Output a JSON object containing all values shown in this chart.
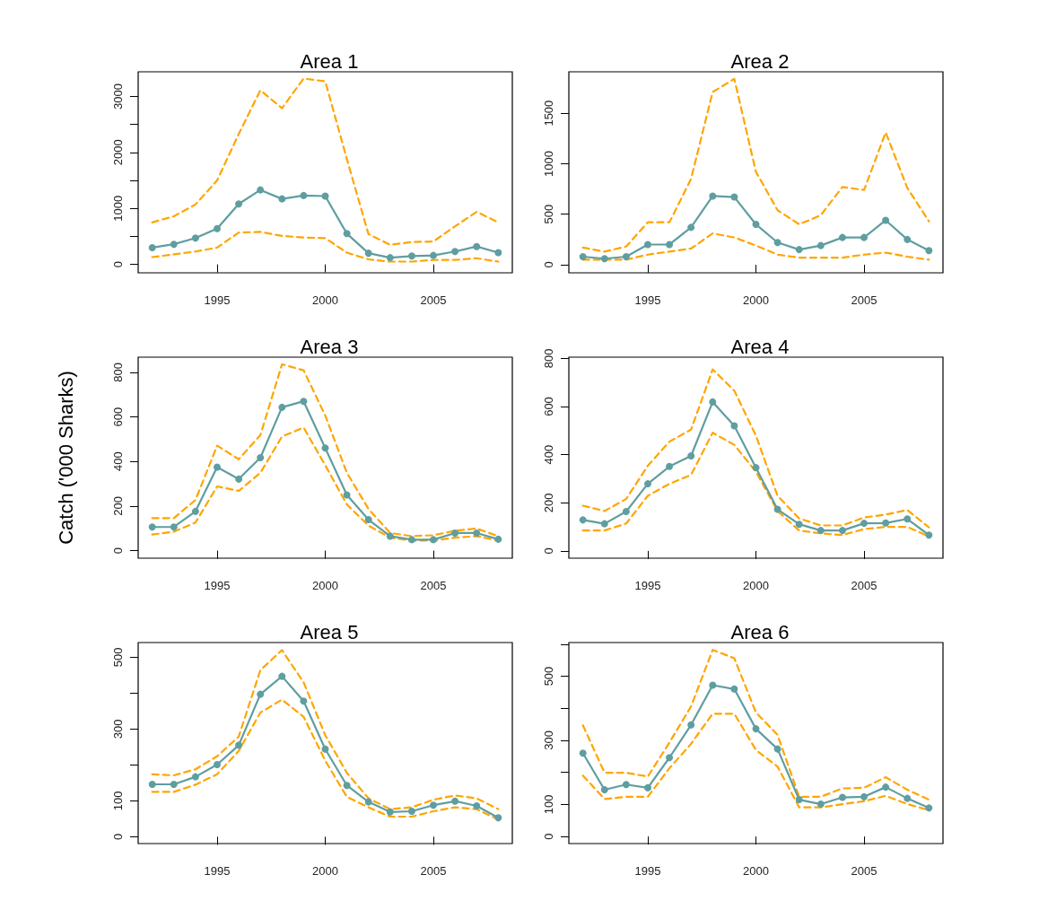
{
  "chart_data": [
    {
      "type": "line",
      "title": "Area 1",
      "x": [
        1992,
        1993,
        1994,
        1995,
        1996,
        1997,
        1998,
        1999,
        2000,
        2001,
        2002,
        2003,
        2004,
        2005,
        2006,
        2007,
        2008
      ],
      "xlim": [
        1991.35,
        2008.65
      ],
      "xticks": [
        1995,
        2000,
        2005
      ],
      "ylim": [
        -150,
        3440
      ],
      "yticks": [
        0,
        {
          "value": 500,
          "label": null
        },
        1000,
        {
          "value": 1500,
          "label": null
        },
        2000,
        {
          "value": 2500,
          "label": null
        },
        3000
      ],
      "grid": false,
      "series": [
        {
          "color": "#5f9ea0",
          "marker": "circle",
          "line_style": "solid",
          "values": [
            300,
            360,
            470,
            640,
            1080,
            1330,
            1170,
            1230,
            1220,
            550,
            200,
            120,
            150,
            160,
            230,
            320,
            210
          ]
        },
        {
          "color": "#ffa500",
          "marker": "none",
          "line_style": "dashed",
          "values": [
            750,
            860,
            1070,
            1500,
            2330,
            3110,
            2790,
            3320,
            3270,
            1880,
            540,
            350,
            400,
            410,
            680,
            940,
            750
          ]
        },
        {
          "color": "#ffa500",
          "marker": "none",
          "line_style": "dashed",
          "values": [
            130,
            180,
            230,
            300,
            570,
            580,
            510,
            480,
            470,
            210,
            90,
            50,
            50,
            80,
            80,
            110,
            50
          ]
        }
      ]
    },
    {
      "type": "line",
      "title": "Area 2",
      "x": [
        1992,
        1993,
        1994,
        1995,
        1996,
        1997,
        1998,
        1999,
        2000,
        2001,
        2002,
        2003,
        2004,
        2005,
        2006,
        2007,
        2008
      ],
      "xlim": [
        1991.35,
        2008.65
      ],
      "xticks": [
        1995,
        2000,
        2005
      ],
      "ylim": [
        -80,
        1910
      ],
      "yticks": [
        0,
        500,
        1000,
        1500
      ],
      "grid": false,
      "series": [
        {
          "color": "#5f9ea0",
          "marker": "circle",
          "line_style": "solid",
          "values": [
            80,
            60,
            80,
            200,
            200,
            370,
            680,
            670,
            400,
            220,
            150,
            190,
            270,
            270,
            440,
            250,
            140
          ]
        },
        {
          "color": "#ffa500",
          "marker": "none",
          "line_style": "dashed",
          "values": [
            170,
            130,
            180,
            420,
            420,
            850,
            1710,
            1840,
            920,
            540,
            400,
            490,
            770,
            740,
            1310,
            760,
            430
          ]
        },
        {
          "color": "#ffa500",
          "marker": "none",
          "line_style": "dashed",
          "values": [
            50,
            50,
            50,
            100,
            130,
            160,
            310,
            270,
            190,
            100,
            70,
            70,
            70,
            100,
            120,
            80,
            50
          ]
        }
      ]
    },
    {
      "type": "line",
      "title": "Area 3",
      "ylabel": "Catch ('000 Sharks)",
      "x": [
        1992,
        1993,
        1994,
        1995,
        1996,
        1997,
        1998,
        1999,
        2000,
        2001,
        2002,
        2003,
        2004,
        2005,
        2006,
        2007,
        2008
      ],
      "xlim": [
        1991.35,
        2008.65
      ],
      "xticks": [
        1995,
        2000,
        2005
      ],
      "ylim": [
        -34,
        868
      ],
      "yticks": [
        0,
        200,
        400,
        600,
        800
      ],
      "grid": false,
      "series": [
        {
          "color": "#5f9ea0",
          "marker": "circle",
          "line_style": "solid",
          "values": [
            106,
            106,
            176,
            375,
            321,
            417,
            643,
            670,
            460,
            250,
            139,
            65,
            49,
            49,
            79,
            79,
            51
          ]
        },
        {
          "color": "#ffa500",
          "marker": "none",
          "line_style": "dashed",
          "values": [
            146,
            146,
            227,
            471,
            410,
            518,
            836,
            809,
            606,
            349,
            187,
            79,
            65,
            69,
            89,
            99,
            65
          ]
        },
        {
          "color": "#ffa500",
          "marker": "none",
          "line_style": "dashed",
          "values": [
            72,
            85,
            126,
            288,
            268,
            349,
            512,
            552,
            383,
            207,
            112,
            58,
            45,
            45,
            58,
            65,
            45
          ]
        }
      ]
    },
    {
      "type": "line",
      "title": "Area 4",
      "x": [
        1992,
        1993,
        1994,
        1995,
        1996,
        1997,
        1998,
        1999,
        2000,
        2001,
        2002,
        2003,
        2004,
        2005,
        2006,
        2007,
        2008
      ],
      "xlim": [
        1991.35,
        2008.65
      ],
      "xticks": [
        1995,
        2000,
        2005
      ],
      "ylim": [
        -30,
        805
      ],
      "yticks": [
        0,
        200,
        400,
        600,
        800
      ],
      "grid": false,
      "series": [
        {
          "color": "#5f9ea0",
          "marker": "circle",
          "line_style": "solid",
          "values": [
            129,
            113,
            164,
            279,
            351,
            395,
            619,
            520,
            346,
            173,
            111,
            85,
            85,
            115,
            116,
            133,
            66
          ]
        },
        {
          "color": "#ffa500",
          "marker": "none",
          "line_style": "dashed",
          "values": [
            188,
            166,
            216,
            354,
            454,
            504,
            754,
            666,
            479,
            229,
            135,
            106,
            106,
            139,
            151,
            170,
            98
          ]
        },
        {
          "color": "#ffa500",
          "marker": "none",
          "line_style": "dashed",
          "values": [
            85,
            85,
            114,
            229,
            279,
            316,
            491,
            441,
            329,
            166,
            85,
            73,
            66,
            91,
            100,
            100,
            60
          ]
        }
      ]
    },
    {
      "type": "line",
      "title": "Area 5",
      "x": [
        1992,
        1993,
        1994,
        1995,
        1996,
        1997,
        1998,
        1999,
        2000,
        2001,
        2002,
        2003,
        2004,
        2005,
        2006,
        2007,
        2008
      ],
      "xlim": [
        1991.35,
        2008.65
      ],
      "xticks": [
        1995,
        2000,
        2005
      ],
      "ylim": [
        -19,
        541
      ],
      "yticks": [
        0,
        100,
        {
          "value": 200,
          "label": null
        },
        300,
        {
          "value": 400,
          "label": null
        },
        500
      ],
      "grid": false,
      "series": [
        {
          "color": "#5f9ea0",
          "marker": "circle",
          "line_style": "solid",
          "values": [
            146,
            146,
            167,
            201,
            255,
            397,
            447,
            378,
            244,
            143,
            97,
            69,
            71,
            88,
            99,
            86,
            53
          ]
        },
        {
          "color": "#ffa500",
          "marker": "none",
          "line_style": "dashed",
          "values": [
            174,
            171,
            188,
            224,
            279,
            464,
            520,
            430,
            283,
            178,
            107,
            77,
            82,
            103,
            115,
            107,
            77
          ]
        },
        {
          "color": "#ffa500",
          "marker": "none",
          "line_style": "dashed",
          "values": [
            125,
            125,
            145,
            174,
            239,
            346,
            382,
            334,
            212,
            111,
            82,
            56,
            56,
            71,
            82,
            77,
            48
          ]
        }
      ]
    },
    {
      "type": "line",
      "title": "Area 6",
      "x": [
        1992,
        1993,
        1994,
        1995,
        1996,
        1997,
        1998,
        1999,
        2000,
        2001,
        2002,
        2003,
        2004,
        2005,
        2006,
        2007,
        2008
      ],
      "xlim": [
        1991.35,
        2008.65
      ],
      "xticks": [
        1995,
        2000,
        2005
      ],
      "ylim": [
        -22,
        605
      ],
      "yticks": [
        0,
        100,
        {
          "value": 200,
          "label": null
        },
        300,
        {
          "value": 400,
          "label": null
        },
        500,
        {
          "value": 600,
          "label": null
        }
      ],
      "grid": false,
      "series": [
        {
          "color": "#5f9ea0",
          "marker": "circle",
          "line_style": "solid",
          "values": [
            260,
            146,
            162,
            152,
            246,
            348,
            472,
            460,
            336,
            273,
            115,
            101,
            122,
            124,
            154,
            119,
            89
          ]
        },
        {
          "color": "#ffa500",
          "marker": "none",
          "line_style": "dashed",
          "values": [
            347,
            199,
            199,
            187,
            293,
            406,
            582,
            556,
            387,
            317,
            124,
            124,
            150,
            152,
            185,
            146,
            115
          ]
        },
        {
          "color": "#ffa500",
          "marker": "none",
          "line_style": "dashed",
          "values": [
            190,
            117,
            124,
            124,
            213,
            289,
            383,
            383,
            270,
            218,
            91,
            91,
            101,
            110,
            127,
            101,
            82
          ]
        }
      ]
    }
  ]
}
